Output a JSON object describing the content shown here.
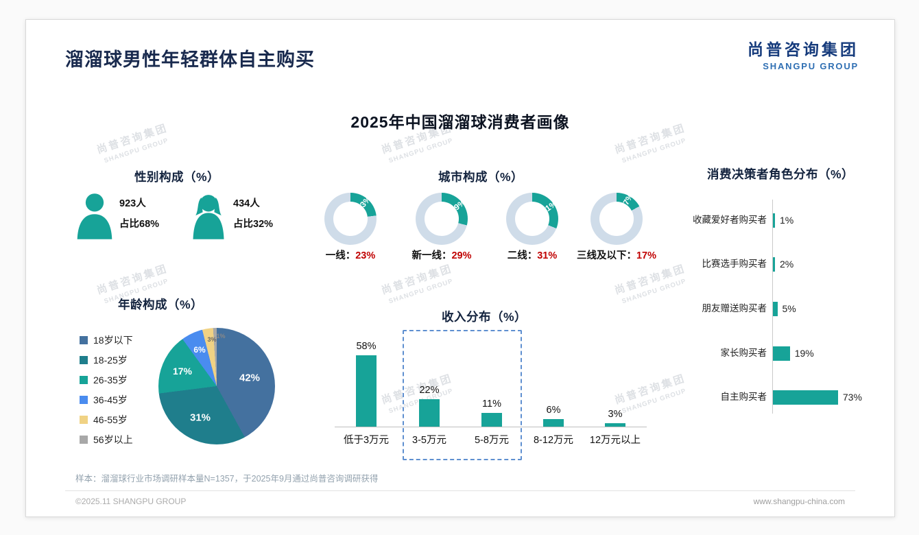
{
  "header": {
    "title": "溜溜球男性年轻群体自主购买",
    "logo_cn": "尚普咨询集团",
    "logo_en": "SHANGPU GROUP"
  },
  "main_title": "2025年中国溜溜球消费者画像",
  "watermark": {
    "line1": "尚普咨询集团",
    "line2": "SHANGPU GROUP"
  },
  "sections": {
    "gender": {
      "title": "性别构成（%）",
      "male": {
        "count": "923人",
        "share": "占比68%"
      },
      "female": {
        "count": "434人",
        "share": "占比32%"
      }
    },
    "city": {
      "title": "城市构成（%）"
    },
    "decision": {
      "title": "消费决策者角色分布（%）"
    },
    "age": {
      "title": "年龄构成（%）"
    },
    "income": {
      "title": "收入分布（%）"
    }
  },
  "footnote": "样本：溜溜球行业市场调研样本量N=1357，于2025年9月通过尚普咨询调研获得",
  "footer": {
    "left": "©2025.11 SHANGPU GROUP",
    "right": "www.shangpu-china.com"
  },
  "colors": {
    "accent": "#17A398",
    "donut_track": "#CFDCE9",
    "highlight_red": "#C00000"
  },
  "chart_data": [
    {
      "id": "city",
      "type": "pie",
      "subtype": "donut-set",
      "title": "城市构成（%）",
      "items": [
        {
          "label": "一线：",
          "value": 23,
          "display": "23%"
        },
        {
          "label": "新一线：",
          "value": 29,
          "display": "29%"
        },
        {
          "label": "二线：",
          "value": 31,
          "display": "31%"
        },
        {
          "label": "三线及以下：",
          "value": 17,
          "display": "17%"
        }
      ]
    },
    {
      "id": "decision",
      "type": "bar",
      "subtype": "horizontal",
      "title": "消费决策者角色分布（%）",
      "categories": [
        "收藏爱好者购买者",
        "比赛选手购买者",
        "朋友赠送购买者",
        "家长购买者",
        "自主购买者"
      ],
      "values": [
        1,
        2,
        5,
        19,
        73
      ],
      "display": [
        "1%",
        "2%",
        "5%",
        "19%",
        "73%"
      ],
      "xlim": [
        0,
        100
      ]
    },
    {
      "id": "age",
      "type": "pie",
      "title": "年龄构成（%）",
      "categories": [
        "18岁以下",
        "18-25岁",
        "26-35岁",
        "36-45岁",
        "46-55岁",
        "56岁以上"
      ],
      "values": [
        42,
        31,
        17,
        6,
        3,
        1
      ],
      "display": [
        "42%",
        "31%",
        "17%",
        "6%",
        "3%",
        "1%"
      ],
      "colors": [
        "#44719F",
        "#1F7E8C",
        "#17A398",
        "#4A8CEF",
        "#F0D284",
        "#A8A8A8"
      ],
      "legend_position": "left"
    },
    {
      "id": "income",
      "type": "bar",
      "subtype": "vertical",
      "title": "收入分布（%）",
      "categories": [
        "低于3万元",
        "3-5万元",
        "5-8万元",
        "8-12万元",
        "12万元以上"
      ],
      "values": [
        58,
        22,
        11,
        6,
        3
      ],
      "display": [
        "58%",
        "22%",
        "11%",
        "6%",
        "3%"
      ],
      "ylim": [
        0,
        60
      ],
      "highlighted_categories": [
        "3-5万元",
        "5-8万元"
      ]
    },
    {
      "id": "gender",
      "type": "pictogram",
      "title": "性别构成（%）",
      "categories": [
        "male",
        "female"
      ],
      "values": [
        68,
        32
      ],
      "counts": [
        923,
        434
      ]
    }
  ]
}
